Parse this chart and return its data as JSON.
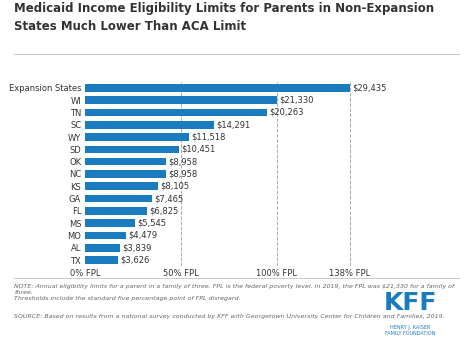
{
  "title_line1": "Medicaid Income Eligibility Limits for Parents in Non-Expansion",
  "title_line2": "States Much Lower Than ACA Limit",
  "categories": [
    "Expansion States",
    "WI",
    "TN",
    "SC",
    "WY",
    "SD",
    "OK",
    "NC",
    "KS",
    "GA",
    "FL",
    "MS",
    "MO",
    "AL",
    "TX"
  ],
  "values": [
    29435,
    21330,
    20263,
    14291,
    11518,
    10451,
    8958,
    8958,
    8105,
    7465,
    6825,
    5545,
    4479,
    3839,
    3626
  ],
  "labels": [
    "$29,435",
    "$21,330",
    "$20,263",
    "$14,291",
    "$11,518",
    "$10,451",
    "$8,958",
    "$8,958",
    "$8,105",
    "$7,465",
    "$6,825",
    "$5,545",
    "$4,479",
    "$3,839",
    "$3,626"
  ],
  "bar_color": "#1a7bbf",
  "background_color": "#ffffff",
  "text_color": "#333333",
  "title_fontsize": 8.5,
  "label_fontsize": 6.0,
  "tick_fontsize": 6.0,
  "fpl_100_value": 21330,
  "fpl_138_value": 29435,
  "x_tick_positions": [
    0,
    10665,
    21330,
    29435
  ],
  "x_tick_labels": [
    "0% FPL",
    "50% FPL",
    "100% FPL",
    "138% FPL"
  ],
  "note_text": "NOTE: Annual eligibility limits for a parent in a family of three. FPL is the federal poverty level. In 2019, the FPL was $21,330 for a family of three.\nThresholds include the standard five percentage point of FPL disregard.",
  "source_text": "SOURCE: Based on results from a national survey conducted by KFF with Georgetown University Center for Children and Families, 2019.",
  "kff_color": "#1a7bbf",
  "footer_text_color": "#666666"
}
